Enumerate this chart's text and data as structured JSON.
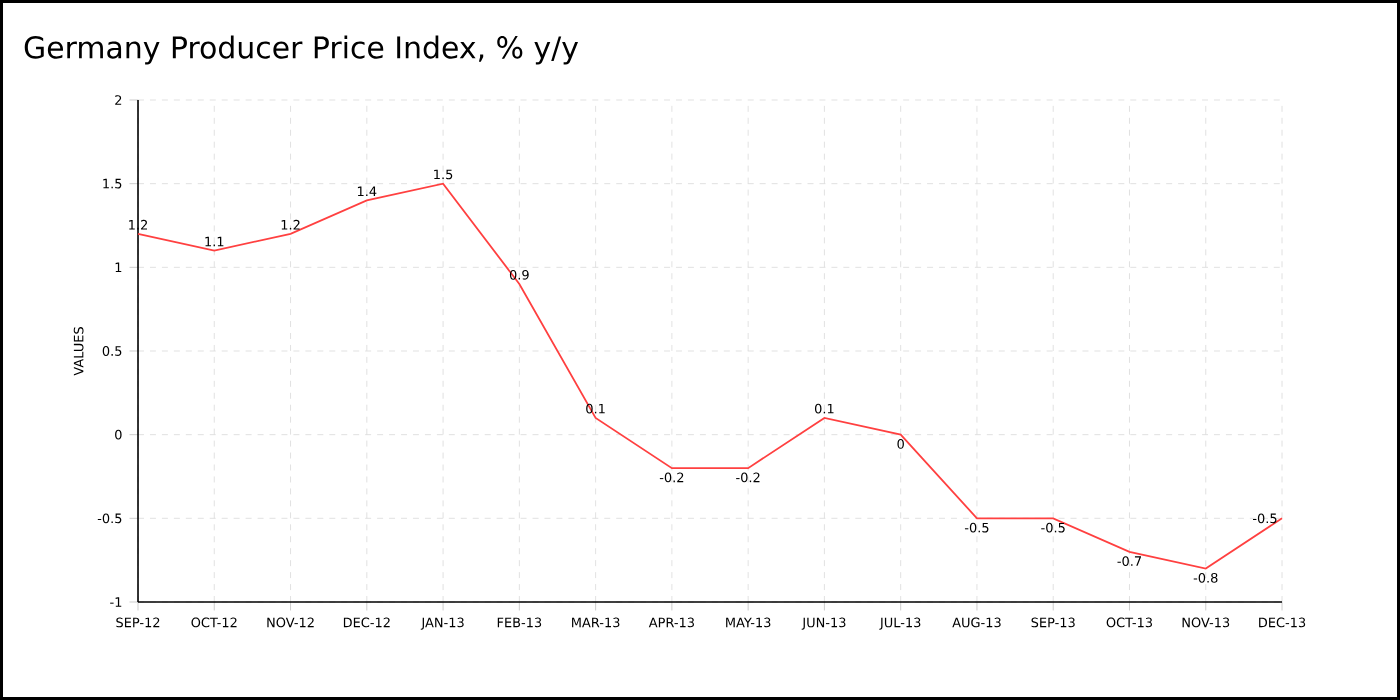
{
  "chart_data": {
    "type": "line",
    "title": "Germany Producer Price Index, % y/y",
    "ylabel": "VALUES",
    "categories": [
      "SEP-12",
      "OCT-12",
      "NOV-12",
      "DEC-12",
      "JAN-13",
      "FEB-13",
      "MAR-13",
      "APR-13",
      "MAY-13",
      "JUN-13",
      "JUL-13",
      "AUG-13",
      "SEP-13",
      "OCT-13",
      "NOV-13",
      "DEC-13"
    ],
    "values": [
      1.2,
      1.1,
      1.2,
      1.4,
      1.5,
      0.9,
      0.1,
      -0.2,
      -0.2,
      0.1,
      0,
      -0.5,
      -0.5,
      -0.7,
      -0.8,
      -0.5
    ],
    "color": "#ff4040",
    "ylim": [
      -1,
      2
    ],
    "yticks": [
      -1,
      -0.5,
      0,
      0.5,
      1,
      1.5,
      2
    ],
    "grid": true,
    "data_labels": true,
    "marker": "none",
    "line_style": "solid"
  }
}
